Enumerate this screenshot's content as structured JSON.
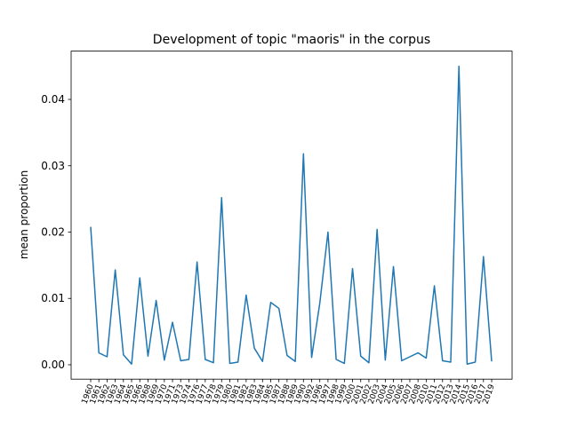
{
  "chart_data": {
    "type": "line",
    "title": "Development of topic \"maoris\" in the corpus",
    "y_label": "mean proportion",
    "categories": [
      "1960",
      "1961",
      "1962",
      "1963",
      "1964",
      "1965",
      "1966",
      "1968",
      "1969",
      "1970",
      "1971",
      "1973",
      "1974",
      "1976",
      "1977",
      "1978",
      "1979",
      "1980",
      "1981",
      "1982",
      "1983",
      "1984",
      "1985",
      "1987",
      "1988",
      "1989",
      "1990",
      "1992",
      "1996",
      "1997",
      "1998",
      "1999",
      "2000",
      "2001",
      "2002",
      "2003",
      "2004",
      "2005",
      "2006",
      "2007",
      "2008",
      "2010",
      "2011",
      "2012",
      "2013",
      "2014",
      "2015",
      "2016",
      "2017",
      "2019"
    ],
    "series": [
      {
        "color": "#1f77b4",
        "values": [
          0.0208,
          0.0018,
          0.0012,
          0.0143,
          0.0015,
          0.0001,
          0.0131,
          0.0013,
          0.0097,
          0.0007,
          0.0064,
          0.0006,
          0.0008,
          0.0155,
          0.0008,
          0.0003,
          0.0252,
          0.0002,
          0.0004,
          0.0105,
          0.0025,
          0.0005,
          0.0094,
          0.0085,
          0.0014,
          0.0005,
          0.0318,
          0.0011,
          0.0093,
          0.02,
          0.0008,
          0.0002,
          0.0145,
          0.0013,
          0.0003,
          0.0204,
          0.0007,
          0.0148,
          0.0006,
          0.0012,
          0.0018,
          0.001,
          0.0119,
          0.0006,
          0.0004,
          0.045,
          0.0001,
          0.0004,
          0.0163,
          0.0005
        ]
      }
    ],
    "ylim": [
      -0.00217,
      0.04728
    ],
    "yticks": [
      {
        "value": 0,
        "label": "0.00"
      },
      {
        "value": 0.01,
        "label": "0.01"
      },
      {
        "value": 0.02,
        "label": "0.02"
      },
      {
        "value": 0.03,
        "label": "0.03"
      },
      {
        "value": 0.04,
        "label": "0.04"
      }
    ]
  }
}
